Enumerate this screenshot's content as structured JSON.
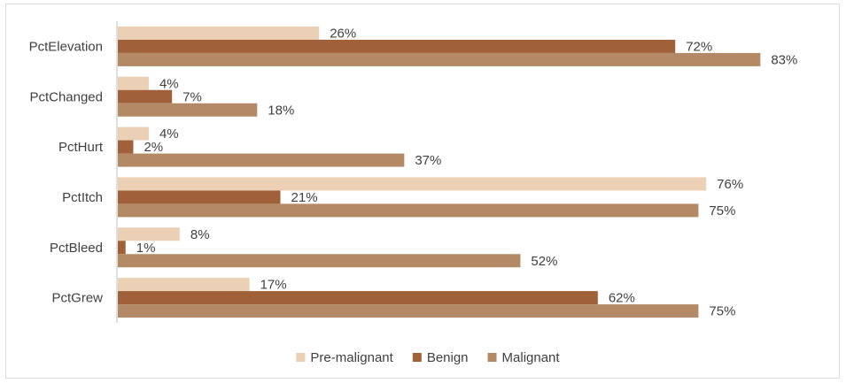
{
  "chart_data": {
    "type": "bar",
    "orientation": "horizontal",
    "categories": [
      "PctElevation",
      "PctChanged",
      "PctHurt",
      "PctItch",
      "PctBleed",
      "PctGrew"
    ],
    "series": [
      {
        "name": "Pre-malignant",
        "color": "#ecd0b6",
        "values": [
          26,
          4,
          4,
          76,
          8,
          17
        ],
        "labels": [
          "26%",
          "4%",
          "4%",
          "76%",
          "8%",
          "17%"
        ]
      },
      {
        "name": "Benign",
        "color": "#a0613a",
        "values": [
          72,
          7,
          2,
          21,
          1,
          62
        ],
        "labels": [
          "72%",
          "7%",
          "2%",
          "21%",
          "1%",
          "62%"
        ]
      },
      {
        "name": "Malignant",
        "color": "#b48a66",
        "values": [
          83,
          18,
          37,
          75,
          52,
          75
        ],
        "labels": [
          "83%",
          "18%",
          "37%",
          "75%",
          "52%",
          "75%"
        ]
      }
    ],
    "xlim": [
      0,
      92
    ],
    "value_unit": "%",
    "grid": false,
    "legend_position": "bottom",
    "title": "",
    "xlabel": "",
    "ylabel": ""
  }
}
